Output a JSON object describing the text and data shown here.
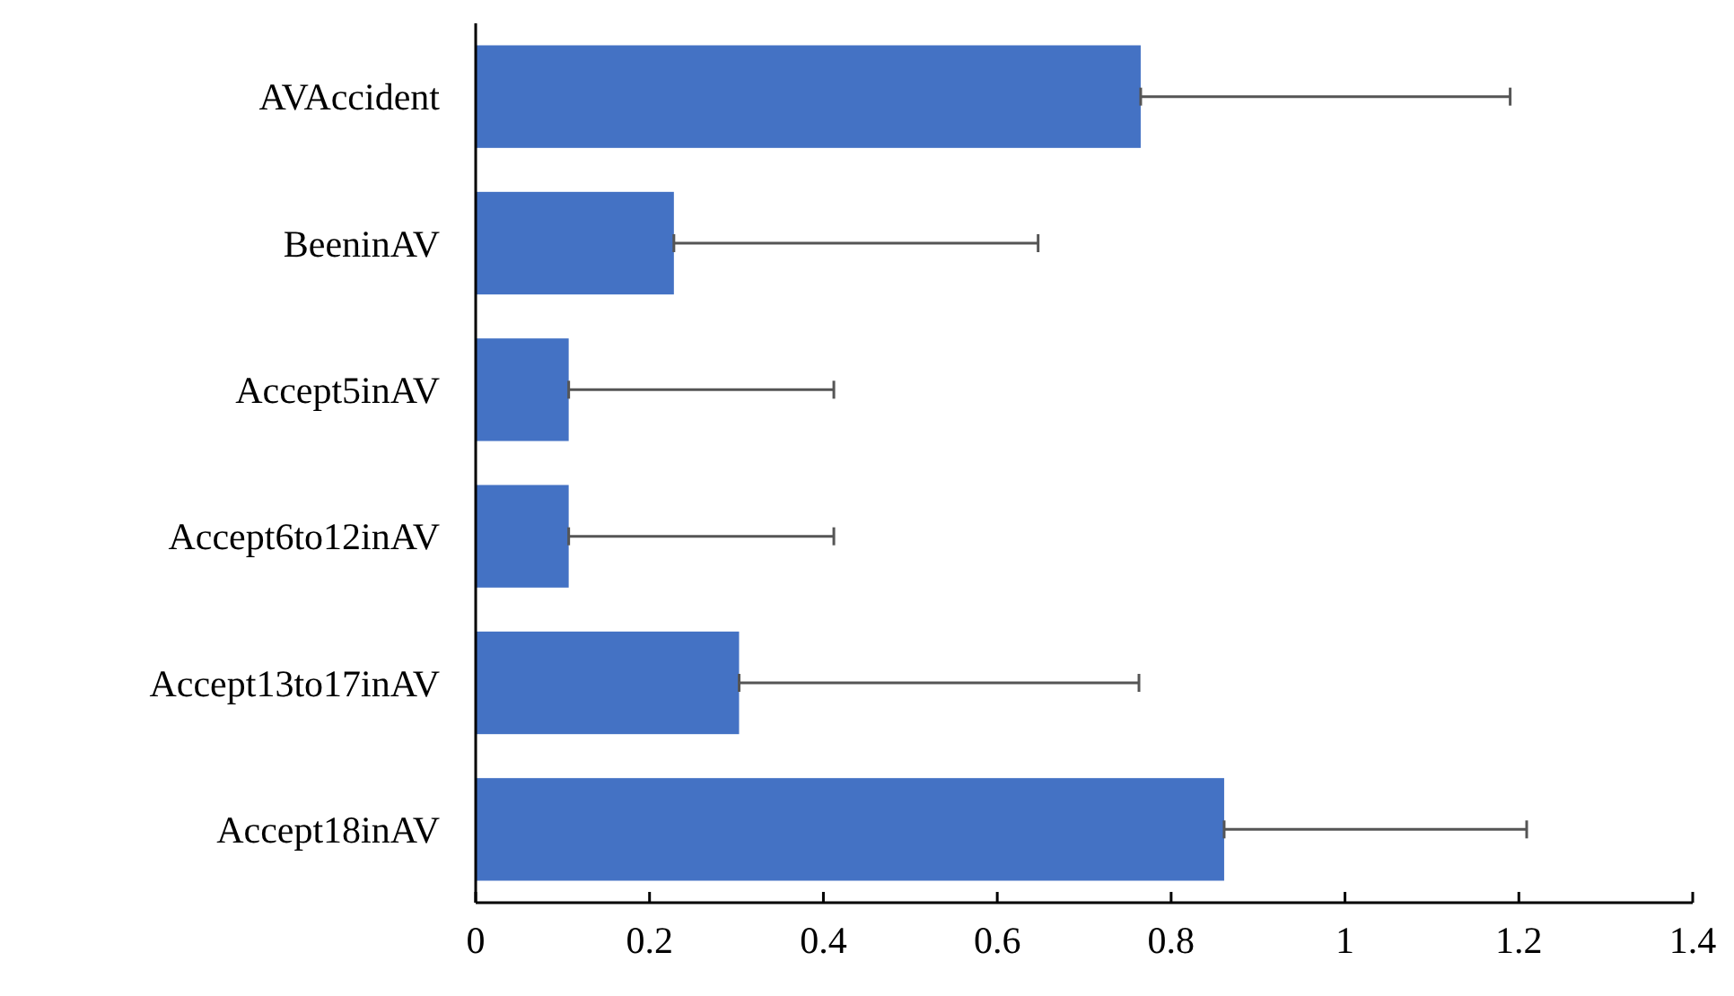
{
  "chart_data": {
    "type": "bar",
    "orientation": "horizontal",
    "categories": [
      "AVAccident",
      "BeeninAV",
      "Accept5inAV",
      "Accept6to12inAV",
      "Accept13to17inAV",
      "Accept18inAV"
    ],
    "values": [
      0.765,
      0.228,
      0.107,
      0.107,
      0.303,
      0.861
    ],
    "errors": [
      [
        0.765,
        1.19
      ],
      [
        0.228,
        0.647
      ],
      [
        0.107,
        0.412
      ],
      [
        0.107,
        0.412
      ],
      [
        0.303,
        0.763
      ],
      [
        0.861,
        1.209
      ]
    ],
    "color": "#4472c4",
    "xlim": [
      0,
      1.4
    ],
    "xticks": [
      0,
      0.2,
      0.4,
      0.6,
      0.8,
      1,
      1.2,
      1.4
    ],
    "grid": false
  }
}
